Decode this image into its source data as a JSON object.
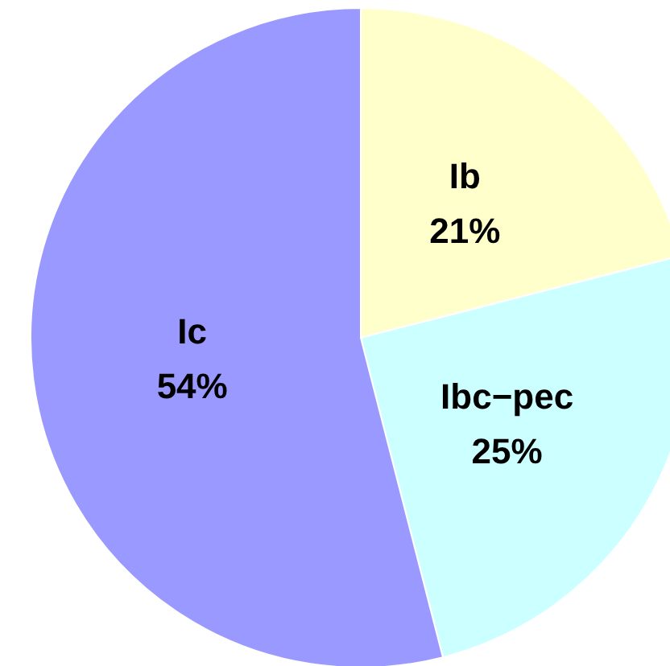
{
  "chart_data": {
    "type": "pie",
    "categories": [
      "Ib",
      "Ibc−pec",
      "Ic"
    ],
    "values": [
      21,
      25,
      54
    ],
    "value_labels": [
      "21%",
      "25%",
      "54%"
    ],
    "colors": [
      "#ffffcc",
      "#ccffff",
      "#9999ff"
    ]
  }
}
